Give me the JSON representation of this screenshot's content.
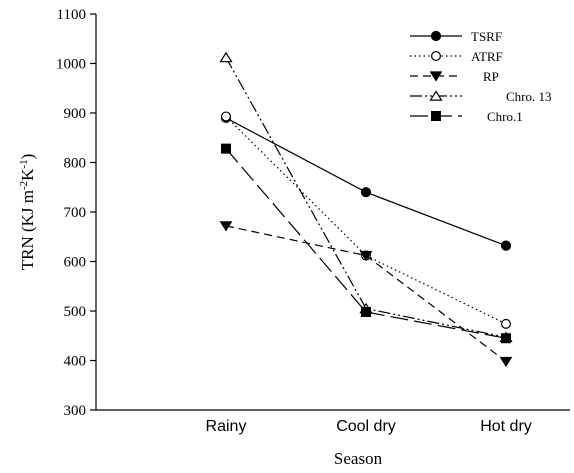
{
  "chart_data": {
    "type": "line",
    "title": "",
    "xlabel": "Season",
    "ylabel_main": "TRN (KJ m",
    "ylabel_sup1": "-2",
    "ylabel_mid": "K",
    "ylabel_sup2": "-1",
    "ylabel_end": ")",
    "categories": [
      "Rainy",
      "Cool dry",
      "Hot dry"
    ],
    "ylim": [
      300,
      1100
    ],
    "yticks": [
      300,
      400,
      500,
      600,
      700,
      800,
      900,
      1000,
      1100
    ],
    "legend_position": "top-right",
    "series": [
      {
        "name": "TSRF",
        "values": [
          890,
          740,
          632
        ],
        "marker": "circle-filled",
        "dash": "solid"
      },
      {
        "name": "ATRF",
        "values": [
          893,
          612,
          474
        ],
        "marker": "circle-open",
        "dash": "dotted"
      },
      {
        "name": "RP",
        "values": [
          672,
          612,
          398
        ],
        "marker": "triangle-down",
        "dash": "dashed"
      },
      {
        "name": "Chro. 13",
        "values": [
          1012,
          505,
          447
        ],
        "marker": "triangle-up-open",
        "dash": "dash-dot-dot"
      },
      {
        "name": "Chro.1",
        "values": [
          828,
          498,
          445
        ],
        "marker": "square-filled",
        "dash": "long-dash"
      }
    ]
  }
}
